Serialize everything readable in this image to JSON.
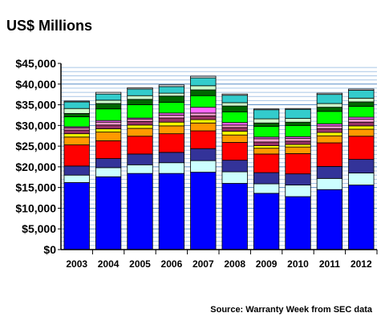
{
  "chart_data": {
    "type": "bar",
    "stacked": true,
    "title": "US$ Millions",
    "source": "Source: Warranty Week from SEC data",
    "xlabel": "",
    "ylabel": "",
    "ylim": [
      0,
      45000
    ],
    "y_ticks": [
      "$0",
      "$5,000",
      "$10,000",
      "$15,000",
      "$20,000",
      "$25,000",
      "$30,000",
      "$35,000",
      "$40,000",
      "$45,000"
    ],
    "grid": true,
    "legend": "none",
    "categories": [
      "2003",
      "2004",
      "2005",
      "2006",
      "2007",
      "2008",
      "2009",
      "2010",
      "2011",
      "2012"
    ],
    "series": [
      {
        "color": "#0000ff",
        "values": [
          16200,
          17600,
          18400,
          18400,
          18700,
          16000,
          13600,
          12800,
          14500,
          15600
        ]
      },
      {
        "color": "#ccffff",
        "values": [
          1800,
          2200,
          2100,
          2600,
          2800,
          2800,
          2300,
          2800,
          2700,
          2900
        ]
      },
      {
        "color": "#333399",
        "values": [
          2200,
          2200,
          2600,
          2500,
          2900,
          2800,
          2700,
          2700,
          2900,
          3300
        ]
      },
      {
        "color": "#ff0000",
        "values": [
          5100,
          4300,
          4300,
          4500,
          4300,
          4300,
          4500,
          4900,
          5700,
          5600
        ]
      },
      {
        "color": "#ff9900",
        "values": [
          1900,
          2100,
          1900,
          1900,
          1900,
          1800,
          1400,
          1600,
          1700,
          1700
        ]
      },
      {
        "color": "#ffff00",
        "values": [
          800,
          800,
          800,
          900,
          800,
          900,
          600,
          600,
          800,
          800
        ]
      },
      {
        "color": "#993366",
        "values": [
          900,
          900,
          900,
          1000,
          900,
          900,
          900,
          800,
          900,
          900
        ]
      },
      {
        "color": "#ff99cc",
        "values": [
          500,
          700,
          500,
          700,
          700,
          600,
          800,
          700,
          700,
          700
        ]
      },
      {
        "color": "#ff66ff",
        "values": [
          300,
          400,
          300,
          500,
          1400,
          600,
          400,
          400,
          500,
          500
        ]
      },
      {
        "color": "#00ff00",
        "values": [
          2400,
          2800,
          3200,
          2600,
          2800,
          2600,
          2600,
          2700,
          3000,
          2600
        ]
      },
      {
        "color": "#006600",
        "values": [
          800,
          1300,
          1300,
          1500,
          1400,
          1400,
          800,
          800,
          1000,
          1100
        ]
      },
      {
        "color": "#ccffcc",
        "values": [
          1200,
          800,
          900,
          700,
          1000,
          800,
          1000,
          900,
          900,
          900
        ]
      },
      {
        "color": "#33cccc",
        "values": [
          1600,
          1500,
          1600,
          1600,
          1900,
          1800,
          2200,
          2200,
          2200,
          1900
        ]
      },
      {
        "color": "#ffffff",
        "values": [
          200,
          400,
          300,
          400,
          400,
          300,
          200,
          200,
          300,
          300
        ]
      }
    ]
  }
}
